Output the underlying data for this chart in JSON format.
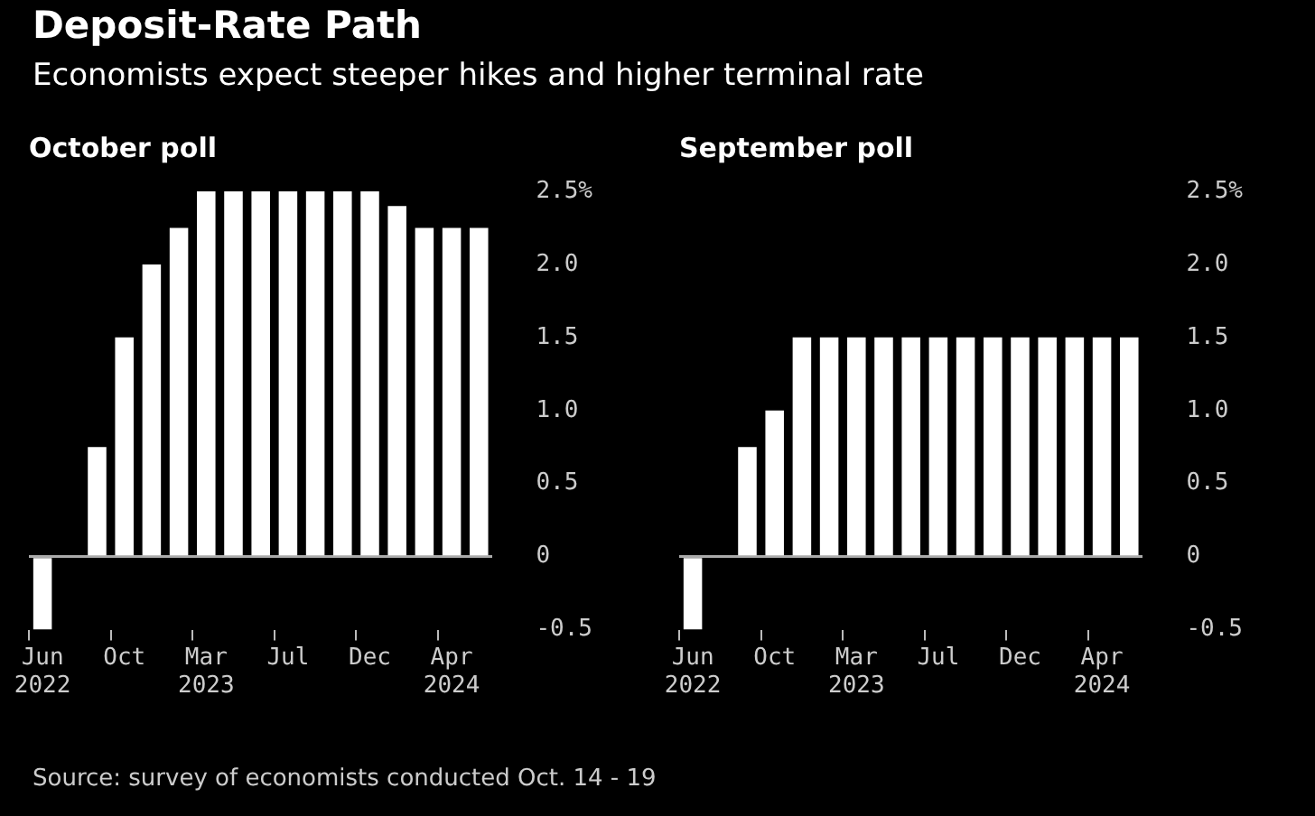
{
  "chart_data": [
    {
      "type": "other",
      "title": "Deposit-Rate Path",
      "subtitle": "Economists expect steeper hikes and higher terminal rate",
      "annotations": [
        "Source: survey of economists conducted Oct. 14 - 19"
      ]
    },
    {
      "type": "bar",
      "title": "October poll",
      "categories": [
        "Jun 2022",
        null,
        null,
        "Oct",
        null,
        null,
        "Mar 2023",
        null,
        null,
        "Jul",
        null,
        null,
        "Dec",
        null,
        null,
        "Apr 2024",
        null
      ],
      "values": [
        -0.5,
        0,
        0.75,
        1.5,
        2.0,
        2.25,
        2.5,
        2.5,
        2.5,
        2.5,
        2.5,
        2.5,
        2.5,
        2.4,
        2.25,
        2.25,
        2.25
      ],
      "color": "#ffffff",
      "ylim": [
        -0.5,
        2.5
      ],
      "yticks": [
        -0.5,
        0,
        0.5,
        {
          "value": 1,
          "label": "1.0"
        },
        1.5,
        {
          "value": 2,
          "label": "2.0"
        },
        {
          "value": 2.5,
          "label": "2.5%"
        }
      ],
      "grid": false,
      "ref_lines": [
        {
          "axis": "y",
          "value": 0,
          "color": "#aaaaaa"
        }
      ]
    },
    {
      "type": "bar",
      "title": "September poll",
      "categories": [
        "Jun 2022",
        null,
        null,
        "Oct",
        null,
        null,
        "Mar 2023",
        null,
        null,
        "Jul",
        null,
        null,
        "Dec",
        null,
        null,
        "Apr 2024",
        null
      ],
      "values": [
        -0.5,
        0,
        0.75,
        1.0,
        1.5,
        1.5,
        1.5,
        1.5,
        1.5,
        1.5,
        1.5,
        1.5,
        1.5,
        1.5,
        1.5,
        1.5,
        1.5
      ],
      "color": "#ffffff",
      "ylim": [
        -0.5,
        2.5
      ],
      "yticks": [
        -0.5,
        0,
        0.5,
        {
          "value": 1,
          "label": "1.0"
        },
        1.5,
        {
          "value": 2,
          "label": "2.0"
        },
        {
          "value": 2.5,
          "label": "2.5%"
        }
      ],
      "grid": false,
      "ref_lines": [
        {
          "axis": "y",
          "value": 0,
          "color": "#aaaaaa"
        }
      ]
    }
  ]
}
